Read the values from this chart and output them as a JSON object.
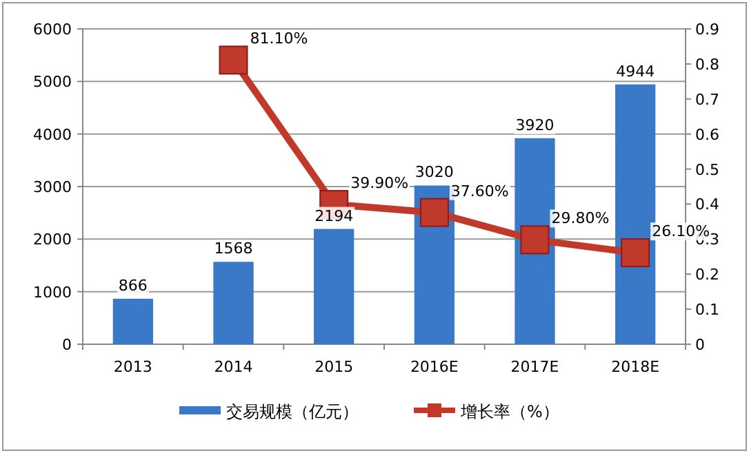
{
  "chart_data": {
    "type": "bar",
    "categories": [
      "2013",
      "2014",
      "2015",
      "2016E",
      "2017E",
      "2018E"
    ],
    "series": [
      {
        "name": "交易规模（亿元）",
        "color": "#3a78c8",
        "values": [
          866,
          1568,
          2194,
          3020,
          3920,
          4944
        ],
        "value_labels": [
          "866",
          "1568",
          "2194",
          "3020",
          "3920",
          "4944"
        ]
      },
      {
        "name": "增长率（%）",
        "type": "line",
        "axis": "y2",
        "color": "#c0392b",
        "marker": "square",
        "values": [
          null,
          0.811,
          0.399,
          0.376,
          0.298,
          0.261
        ],
        "value_labels": [
          null,
          "81.10%",
          "39.90%",
          "37.60%",
          "29.80%",
          "26.10%"
        ]
      }
    ],
    "ylim": [
      0,
      6000
    ],
    "yticks": [
      0,
      1000,
      2000,
      3000,
      4000,
      5000,
      6000
    ],
    "y2lim": [
      0,
      0.9
    ],
    "y2ticks": [
      0,
      0.1,
      0.2,
      0.3,
      0.4,
      0.5,
      0.6,
      0.7,
      0.8,
      0.9
    ],
    "grid": "y",
    "legend": "bottom"
  }
}
